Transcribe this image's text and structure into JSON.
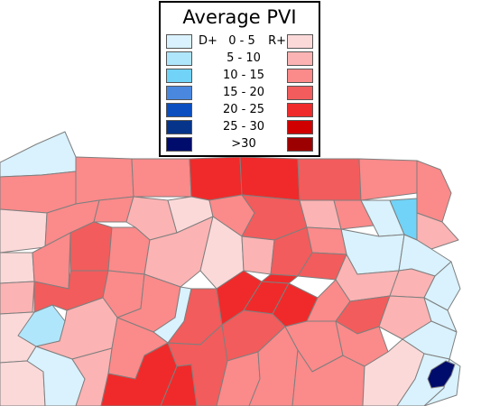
{
  "legend": {
    "title": "Average PVI",
    "left_header": "D+",
    "right_header": "R+",
    "ranges": [
      "0  -  5",
      "5  -  10",
      "10  -  15",
      "15  -  20",
      "20  -  25",
      "25  -  30",
      ">30"
    ],
    "dem_colors": [
      "#d9f2fd",
      "#b0e6fb",
      "#70d3f7",
      "#4a88e0",
      "#0a4ec0",
      "#06348a",
      "#000c6b"
    ],
    "rep_colors": [
      "#fcd9d9",
      "#fcb3b3",
      "#fb8a8a",
      "#f25c5c",
      "#f02a2a",
      "#d00000",
      "#9c0000"
    ]
  },
  "map": {
    "region": "Pennsylvania counties",
    "colors": {
      "r1": "#fcd9d9",
      "r2": "#fcb3b3",
      "r3": "#fb8a8a",
      "r4": "#f25c5c",
      "r5": "#f02a2a",
      "d1": "#d9f2fd",
      "d2": "#b0e6fb",
      "d3": "#70d3f7",
      "d7": "#000c6b"
    }
  }
}
